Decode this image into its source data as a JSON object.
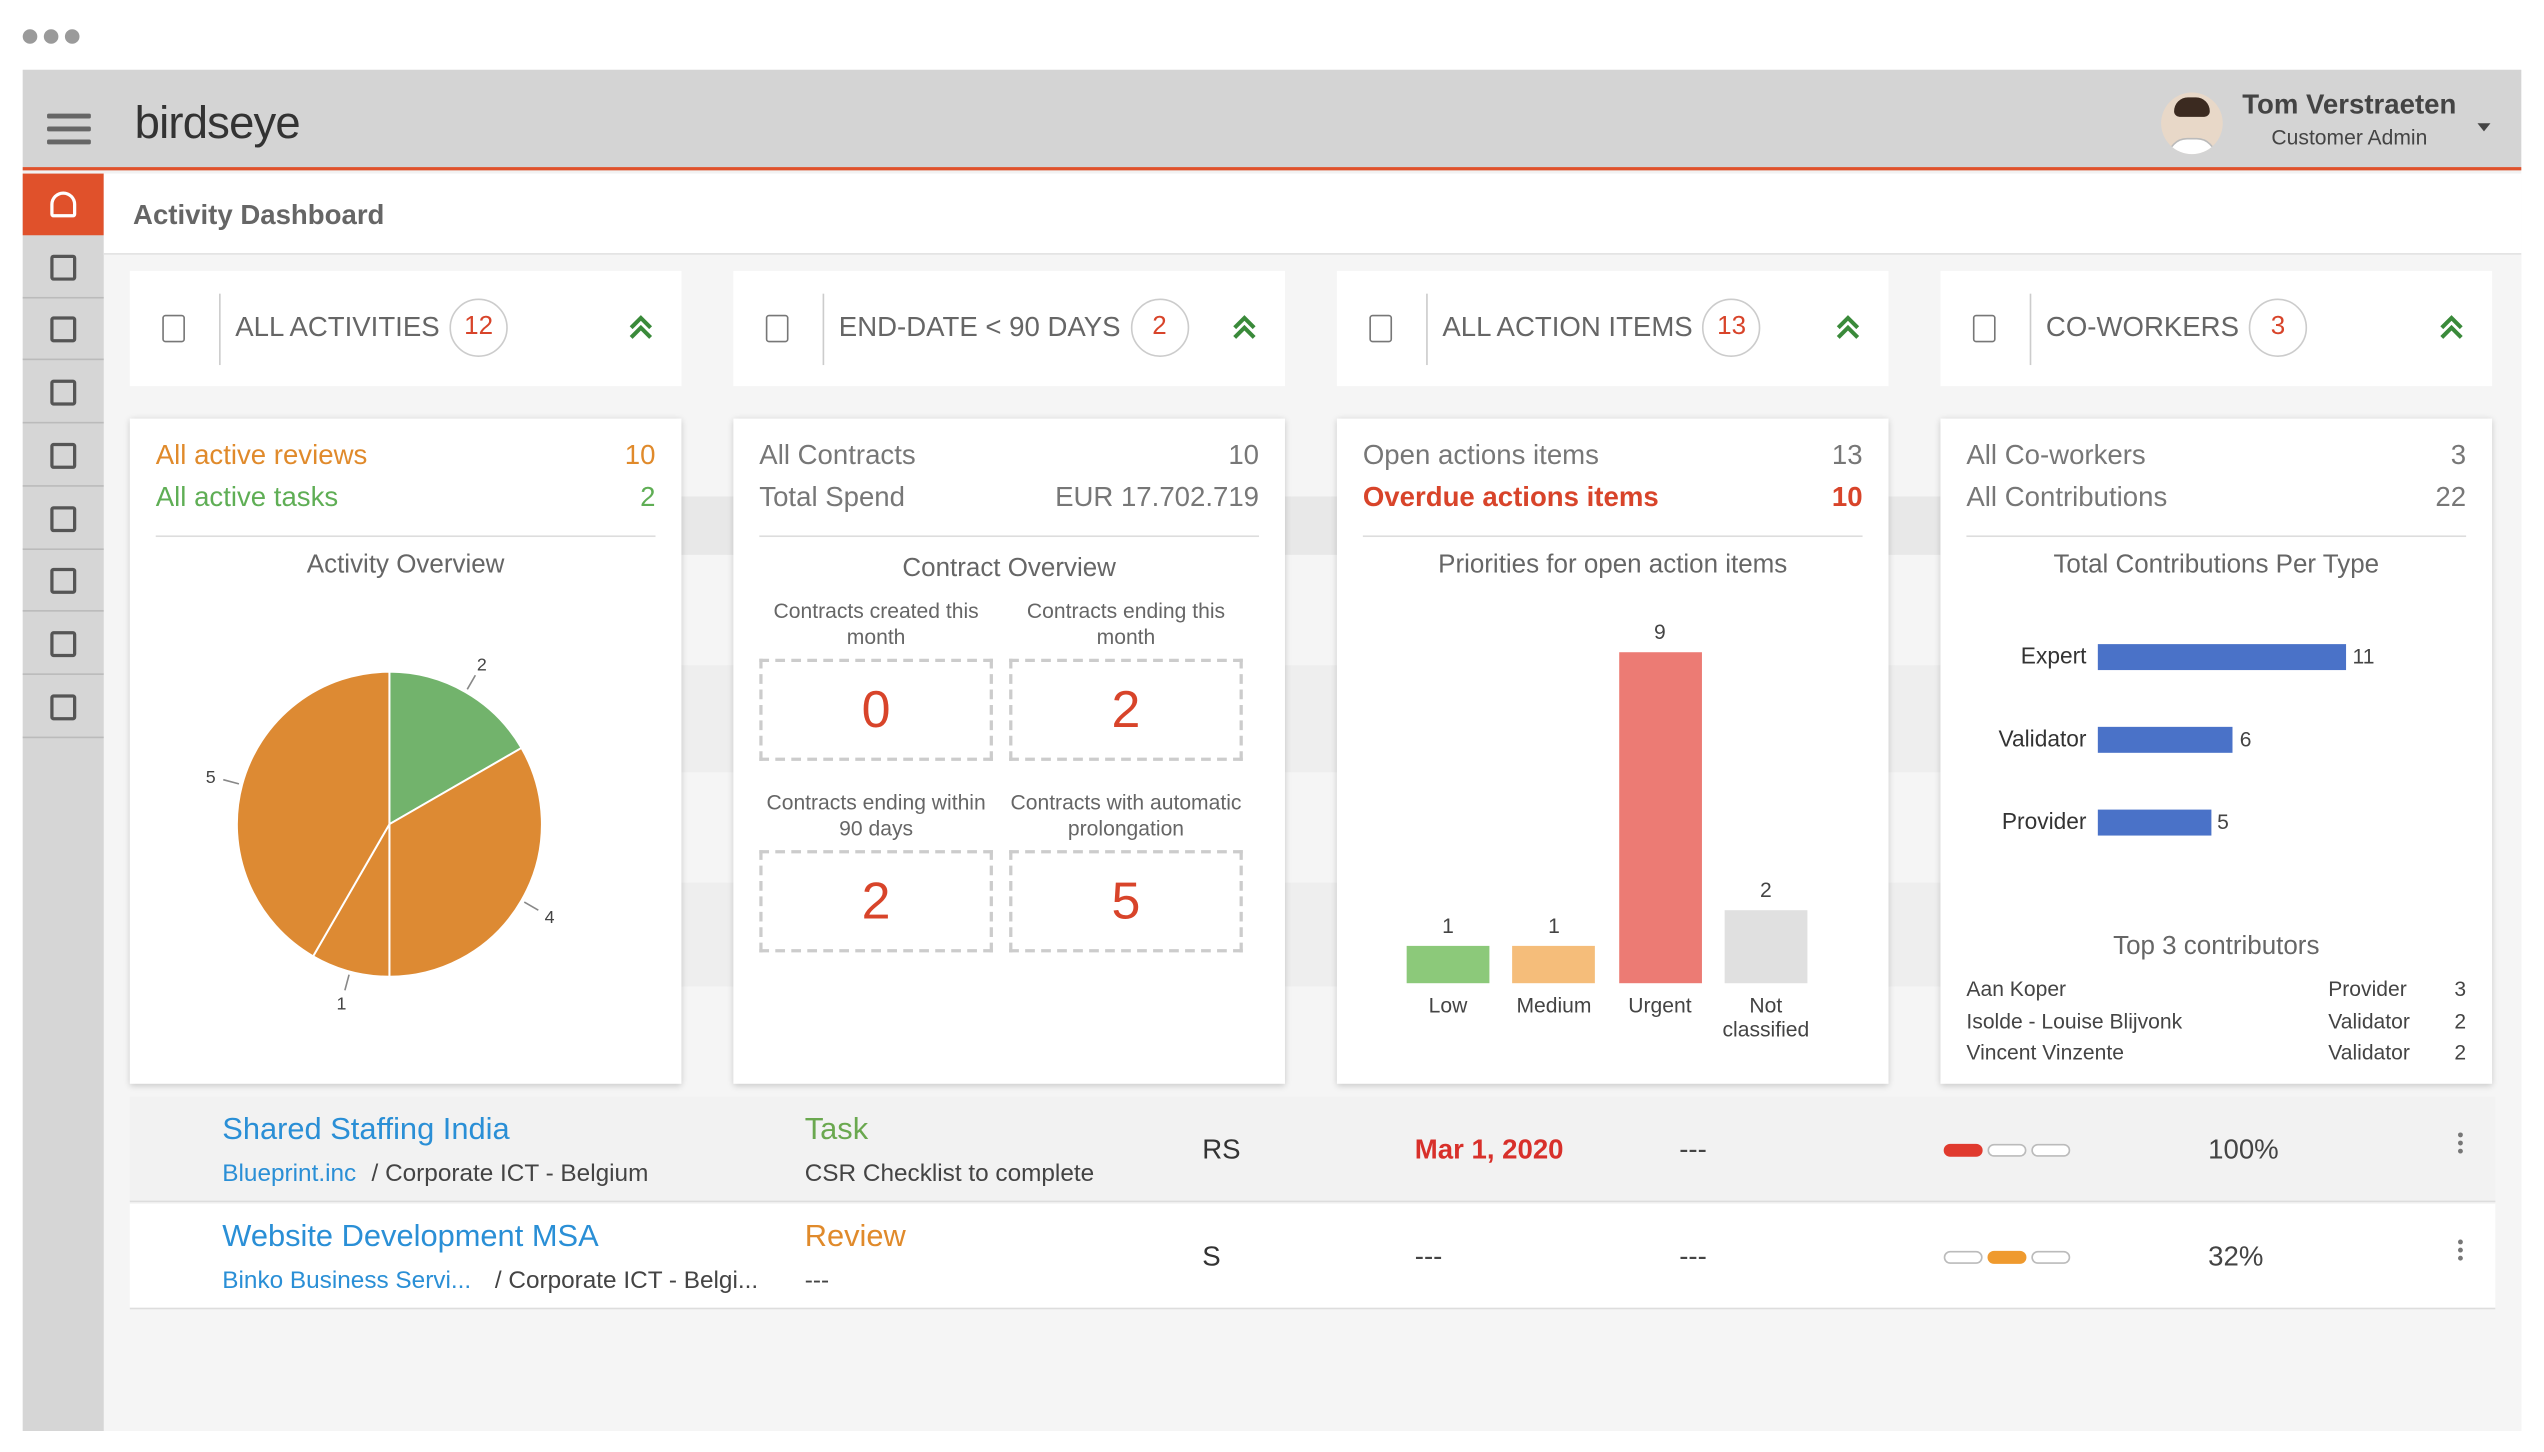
{
  "header": {
    "logo": "birdseye",
    "user_name": "Tom Verstraeten",
    "user_role": "Customer Admin"
  },
  "page_title": "Activity Dashboard",
  "cards": [
    {
      "title": "ALL ACTIVITIES",
      "count": 12,
      "stats": [
        {
          "label": "All active reviews",
          "value": 10,
          "color": "#e08a2b"
        },
        {
          "label": "All active tasks",
          "value": 2,
          "color": "#5fae55"
        }
      ],
      "chart_data": {
        "type": "pie",
        "title": "Activity Overview",
        "values": [
          2,
          4,
          1,
          5
        ],
        "colors": [
          "#72b36c",
          "#dd8a33",
          "#dd8a33",
          "#dd8a33"
        ]
      }
    },
    {
      "title": "END-DATE < 90 DAYS",
      "count": 2,
      "stats": [
        {
          "label": "All Contracts",
          "value": 10
        },
        {
          "label": "Total Spend",
          "value": "EUR 17.702.719"
        }
      ],
      "overview": {
        "title": "Contract Overview",
        "tiles": [
          {
            "label": "Contracts created this month",
            "value": 0
          },
          {
            "label": "Contracts ending this month",
            "value": 2
          },
          {
            "label": "Contracts ending within 90 days",
            "value": 2
          },
          {
            "label": "Contracts with automatic prolongation",
            "value": 5
          }
        ]
      }
    },
    {
      "title": "ALL ACTION ITEMS",
      "count": 13,
      "stats": [
        {
          "label": "Open actions items",
          "value": 13
        },
        {
          "label": "Overdue actions items",
          "value": 10,
          "color": "#d8442a",
          "bold": true
        }
      ],
      "chart_data": {
        "type": "bar",
        "title": "Priorities for open action items",
        "categories": [
          "Low",
          "Medium",
          "Urgent",
          "Not classified"
        ],
        "values": [
          1,
          1,
          9,
          2
        ],
        "colors": [
          "#8cc97a",
          "#f5bd7a",
          "#ec7b74",
          "#e0e0e0"
        ]
      }
    },
    {
      "title": "CO-WORKERS",
      "count": 3,
      "stats": [
        {
          "label": "All Co-workers",
          "value": 3
        },
        {
          "label": "All Contributions",
          "value": 22
        }
      ],
      "chart_data": {
        "type": "hbar",
        "title": "Total Contributions Per Type",
        "categories": [
          "Expert",
          "Validator",
          "Provider"
        ],
        "values": [
          11,
          6,
          5
        ],
        "color": "#4a72c8"
      },
      "top": {
        "title": "Top 3 contributors",
        "rows": [
          [
            "Aan Koper",
            "Provider",
            3
          ],
          [
            "Isolde - Louise Blijvonk",
            "Validator",
            2
          ],
          [
            "Vincent Vinzente",
            "Validator",
            2
          ]
        ]
      }
    }
  ],
  "rows": [
    {
      "title": "Shared Staffing India",
      "company": "Blueprint.inc",
      "path": "/ Corporate ICT - Belgium",
      "type": "Task",
      "type_color": "#6aa84f",
      "description": "CSR Checklist to complete",
      "initials": "RS",
      "date": "Mar 1, 2020",
      "date_overdue": true,
      "extra": "---",
      "status": {
        "index": 0,
        "color": "#e03a2e"
      },
      "progress": "100%"
    },
    {
      "title": "Website Development MSA",
      "company": "Binko Business Servi...",
      "path": "/ Corporate ICT - Belgi...",
      "type": "Review",
      "type_color": "#e08a2b",
      "description": "---",
      "initials": "S",
      "date": "---",
      "date_overdue": false,
      "extra": "---",
      "status": {
        "index": 1,
        "color": "#ef9a2e"
      },
      "progress": "32%"
    }
  ]
}
